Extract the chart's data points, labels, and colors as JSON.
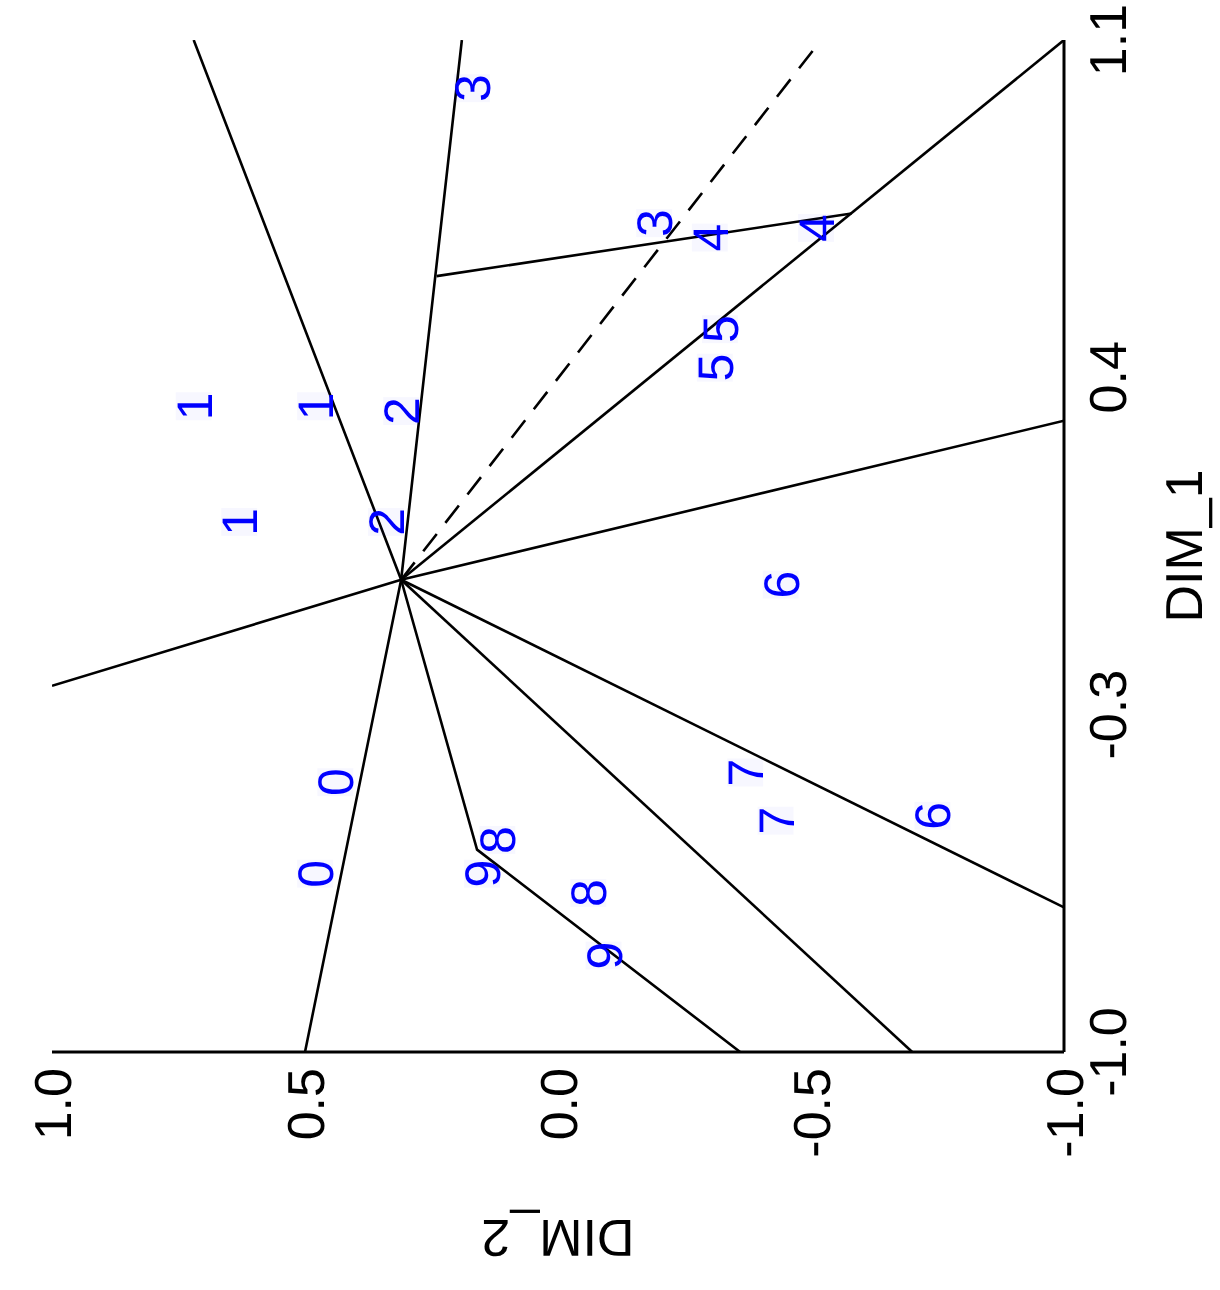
{
  "chart_data": {
    "type": "line",
    "xlabel": "DIM_2",
    "ylabel": "DIM_1",
    "xlim": [
      1.0,
      -1.0
    ],
    "xticks": [
      {
        "value": 1.0,
        "label": "1.0"
      },
      0.5,
      {
        "value": 0,
        "label": "0.0"
      },
      -0.5,
      {
        "value": -1.0,
        "label": "-1.0"
      }
    ],
    "ylim": [
      -1.0,
      1.1
    ],
    "yticks": [
      {
        "value": -1.0,
        "label": "-1.0"
      },
      -0.3,
      0.4,
      1.1
    ],
    "series": [
      {
        "color": "#000000",
        "line_style": "solid",
        "x": [
          0.5,
          0.31,
          0.19
        ],
        "values": [
          -1.0,
          -0.02,
          1.1
        ]
      },
      {
        "color": "#000000",
        "line_style": "solid",
        "x": [
          1.0,
          0.31,
          -1.0
        ],
        "values": [
          -0.24,
          -0.02,
          0.31
        ]
      },
      {
        "color": "#000000",
        "line_style": "solid",
        "x": [
          0.72,
          0.31,
          0.16,
          -0.36
        ],
        "values": [
          1.1,
          -0.02,
          -0.58,
          -1.0
        ]
      },
      {
        "color": "#000000",
        "line_style": "solid",
        "x": [
          0.31,
          -0.7
        ],
        "values": [
          -0.02,
          -1.0
        ]
      },
      {
        "color": "#000000",
        "line_style": "solid",
        "x": [
          0.31,
          -1.0
        ],
        "values": [
          -0.02,
          -0.7
        ]
      },
      {
        "color": "#000000",
        "line_style": "solid",
        "x": [
          0.31,
          -1.0
        ],
        "values": [
          -0.02,
          1.1
        ]
      },
      {
        "color": "#000000",
        "line_style": "solid",
        "x": [
          0.24,
          -0.58
        ],
        "values": [
          0.61,
          0.74
        ]
      },
      {
        "color": "#000000",
        "line_style": "dashed",
        "x": [
          0.31,
          -0.52
        ],
        "values": [
          -0.02,
          1.1
        ]
      },
      {
        "type": "scatter",
        "name": "0",
        "color": "#0000ff",
        "x": [
          0.44,
          0.48
        ],
        "values": [
          -0.44,
          -0.63
        ]
      },
      {
        "type": "scatter",
        "name": "1",
        "color": "#0000ff",
        "x": [
          0.72,
          0.48,
          0.63
        ],
        "values": [
          0.34,
          0.34,
          0.1
        ]
      },
      {
        "type": "scatter",
        "name": "2",
        "color": "#0000ff",
        "x": [
          0.31,
          0.34
        ],
        "values": [
          0.33,
          0.1
        ]
      },
      {
        "type": "scatter",
        "name": "3",
        "color": "#0000ff",
        "x": [
          0.17,
          -0.19
        ],
        "values": [
          1.0,
          0.72
        ]
      },
      {
        "type": "scatter",
        "name": "4",
        "color": "#0000ff",
        "x": [
          -0.3,
          -0.51
        ],
        "values": [
          0.69,
          0.71
        ]
      },
      {
        "type": "scatter",
        "name": "5",
        "color": "#0000ff",
        "x": [
          -0.32,
          -0.31
        ],
        "values": [
          0.5,
          0.42
        ]
      },
      {
        "type": "scatter",
        "name": "6",
        "color": "#0000ff",
        "x": [
          -0.44,
          -0.74
        ],
        "values": [
          -0.03,
          -0.51
        ]
      },
      {
        "type": "scatter",
        "name": "7",
        "color": "#0000ff",
        "x": [
          -0.37,
          -0.43
        ],
        "values": [
          -0.42,
          -0.52
        ]
      },
      {
        "type": "scatter",
        "name": "8",
        "color": "#0000ff",
        "x": [
          0.12,
          -0.06
        ],
        "values": [
          -0.56,
          -0.67
        ]
      },
      {
        "type": "scatter",
        "name": "9",
        "color": "#0000ff",
        "x": [
          0.15,
          -0.09
        ],
        "values": [
          -0.63,
          -0.8
        ]
      }
    ]
  }
}
